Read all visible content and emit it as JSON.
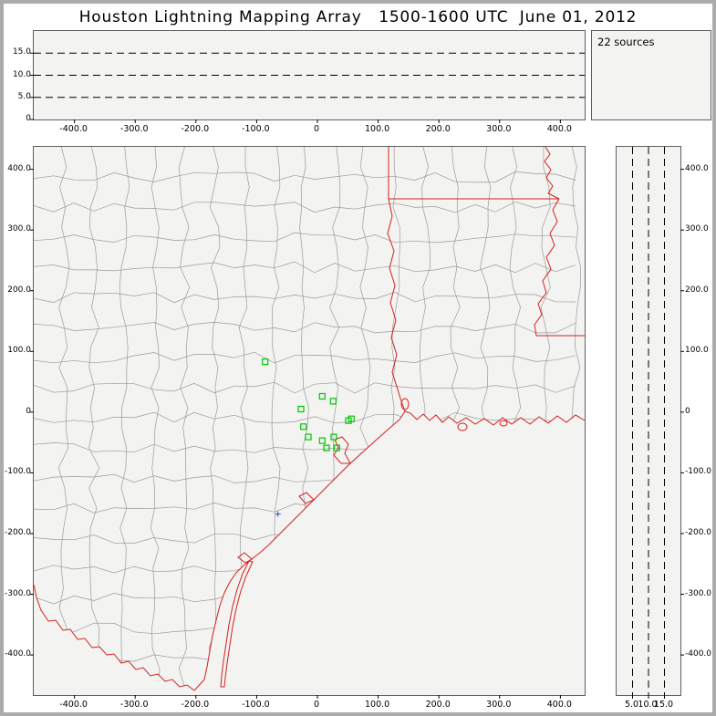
{
  "title": "Houston Lightning Mapping Array   1500-1600 UTC  June 01, 2012",
  "sources": {
    "label": "22 sources",
    "count": 22
  },
  "colors": {
    "panel_background": "#f3f3f1",
    "frame_border": "#ababab",
    "panel_border": "#5e5e5e",
    "county_line": "#9a9a9a",
    "state_line": "#d42020",
    "station_marker": "#00c400",
    "aux_marker": "#4040cc",
    "dashed_line": "#000000"
  },
  "chart_data": [
    {
      "type": "scatter",
      "name": "altitude-vs-east-west",
      "xlim": [
        -467,
        440
      ],
      "ylim": [
        0,
        20
      ],
      "x_tick_values": [
        -400,
        -300,
        -200,
        -100,
        0,
        100,
        200,
        300,
        400
      ],
      "x_tick_labels": [
        "-400.0",
        "-300.0",
        "-200.0",
        "-100.0",
        "0",
        "100.0",
        "200.0",
        "300.0",
        "400.0"
      ],
      "y_tick_values": [
        15,
        10,
        5,
        0
      ],
      "y_tick_labels": [
        "15.0",
        "10.0",
        "5.0",
        "0"
      ],
      "dashed_y_values": [
        5,
        10,
        15
      ],
      "points": []
    },
    {
      "type": "scatter",
      "name": "plan-view-map",
      "xlim": [
        -467,
        440
      ],
      "ylim": [
        -466,
        437
      ],
      "x_tick_values": [
        -400,
        -300,
        -200,
        -100,
        0,
        100,
        200,
        300,
        400
      ],
      "x_tick_labels": [
        "-400.0",
        "-300.0",
        "-200.0",
        "-100.0",
        "0",
        "100.0",
        "200.0",
        "300.0",
        "400.0"
      ],
      "y_tick_values": [
        400,
        300,
        200,
        100,
        0,
        -100,
        -200,
        -300,
        -400
      ],
      "y_tick_labels": [
        "400.0",
        "300.0",
        "200.0",
        "100.0",
        "0",
        "-100.0",
        "-200.0",
        "-300.0",
        "-400.0"
      ],
      "stations_km": [
        [
          -86,
          83
        ],
        [
          -27,
          5
        ],
        [
          8,
          26
        ],
        [
          26,
          18
        ],
        [
          -23,
          -24
        ],
        [
          -15,
          -41
        ],
        [
          8,
          -47
        ],
        [
          27,
          -41
        ],
        [
          15,
          -59
        ],
        [
          32,
          -59
        ],
        [
          51,
          -14
        ],
        [
          56,
          -11
        ]
      ],
      "aux_marker_km": [
        -65,
        -168
      ],
      "points": []
    },
    {
      "type": "scatter",
      "name": "altitude-vs-north-south",
      "xlim": [
        0,
        20
      ],
      "ylim": [
        -466,
        437
      ],
      "x_tick_values": [
        5,
        10,
        15
      ],
      "x_tick_labels": [
        "5.0",
        "10.0",
        "15.0"
      ],
      "y_tick_values": [
        400,
        300,
        200,
        100,
        0,
        -100,
        -200,
        -300,
        -400
      ],
      "y_tick_labels": [
        "400.0",
        "300.0",
        "200.0",
        "100.0",
        "0",
        "-100.0",
        "-200.0",
        "-300.0",
        "-400.0"
      ],
      "dashed_x_values": [
        5,
        10,
        15
      ],
      "points": []
    }
  ]
}
